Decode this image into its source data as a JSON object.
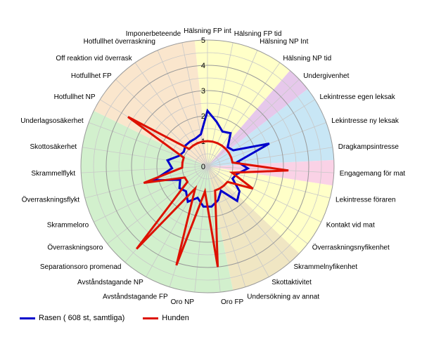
{
  "chart_data": {
    "type": "radar",
    "r_range": [
      0,
      5
    ],
    "r_ticks": [
      1,
      2,
      3,
      4,
      5
    ],
    "grid": true,
    "legend_position": "bottom-left",
    "categories": [
      "Hälsning FP int",
      "Hälsning FP tid",
      "Hälsning NP Int",
      "Hälsning NP tid",
      "Undergivenhet",
      "Lekintresse egen leksak",
      "Lekintresse ny leksak",
      "Dragkampsintresse",
      "Engagemang för mat",
      "Lekintresse föraren",
      "Kontakt vid mat",
      "Överraskningsnyfikenhet",
      "Skrammelnyfikenhet",
      "Skottaktivitet",
      "Undersökning av annat",
      "Oro FP",
      "Oro NP",
      "Avståndstagande FP",
      "Avståndstagande NP",
      "Separationsoro promenad",
      "Överraskningsoro",
      "Skrammeloro",
      "Överraskningsflykt",
      "Skrammelflykt",
      "Skottosäkerhet",
      "Underlagsosäkerhet",
      "Hotfullhet NP",
      "Hotfullhet FP",
      "Off reaktion vid överrask",
      "Hotfullhet överraskning",
      "Imponerbeteende"
    ],
    "sectors": [
      {
        "from": 0,
        "to": 3,
        "color": "#ffffc8"
      },
      {
        "from": 4,
        "to": 4,
        "color": "#e6c8eb"
      },
      {
        "from": 5,
        "to": 7,
        "color": "#c8e6f5"
      },
      {
        "from": 8,
        "to": 8,
        "color": "#fad2e6"
      },
      {
        "from": 9,
        "to": 11,
        "color": "#ffffc8"
      },
      {
        "from": 12,
        "to": 14,
        "color": "#f0e6c3"
      },
      {
        "from": 15,
        "to": 25,
        "color": "#d2f0cd"
      },
      {
        "from": 26,
        "to": 30,
        "color": "#fae6cd"
      }
    ],
    "series": [
      {
        "name": "Rasen ( 608 st, samtliga)",
        "color": "#0000cc",
        "values": [
          2.2,
          1.8,
          1.5,
          1.6,
          1.1,
          1.2,
          2.6,
          1.2,
          1.6,
          1.2,
          1.1,
          1.6,
          1.8,
          1.1,
          1.4,
          1.6,
          1.6,
          1.3,
          1.6,
          1.3,
          1.4,
          1.2,
          2.2,
          1.4,
          1.6,
          1.2,
          1.1,
          1.2,
          1.2,
          1.2,
          1.3
        ]
      },
      {
        "name": "Hunden",
        "color": "#dd1100",
        "values": [
          1.0,
          1.0,
          1.0,
          1.0,
          1.0,
          1.0,
          1.0,
          1.0,
          3.2,
          1.0,
          2.0,
          1.0,
          1.0,
          1.0,
          1.0,
          4.0,
          1.0,
          4.1,
          1.0,
          4.3,
          1.0,
          1.0,
          2.6,
          1.0,
          1.0,
          1.0,
          3.7,
          1.0,
          1.0,
          1.0,
          1.0
        ]
      }
    ]
  },
  "legend": [
    {
      "label": "Rasen ( 608 st, samtliga)",
      "color": "#0000cc"
    },
    {
      "label": "Hunden",
      "color": "#dd1100"
    }
  ]
}
